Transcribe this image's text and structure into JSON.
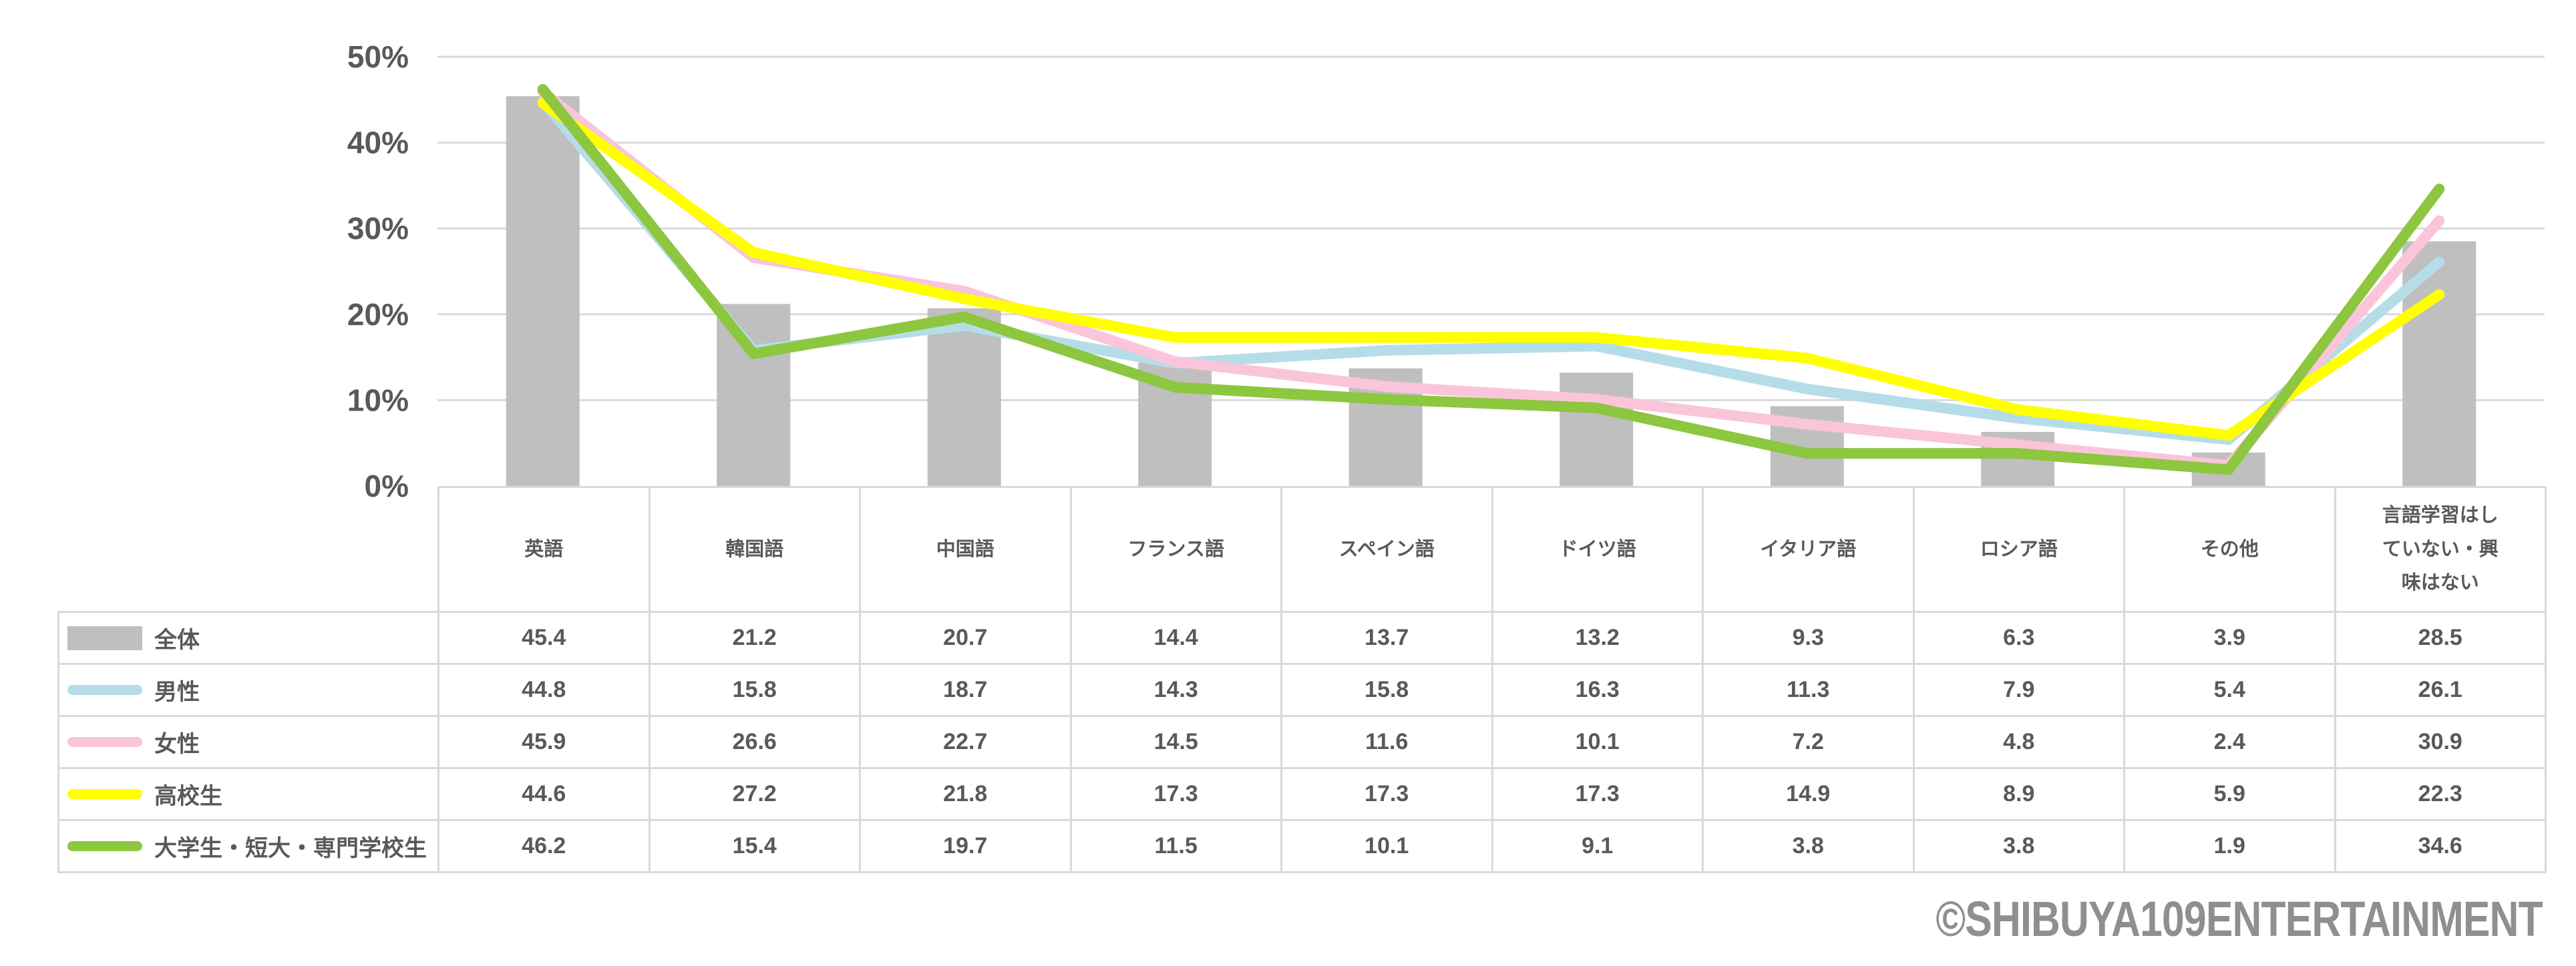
{
  "chart_data": {
    "type": "bar+line",
    "title": "",
    "categories": [
      "英語",
      "韓国語",
      "中国語",
      "フランス語",
      "スペイン語",
      "ドイツ語",
      "イタリア語",
      "ロシア語",
      "その他",
      "言語学習はしていない・興味はない"
    ],
    "series": [
      {
        "name": "全体",
        "type": "bar",
        "color": "#bfbfbf",
        "values": [
          45.4,
          21.2,
          20.7,
          14.4,
          13.7,
          13.2,
          9.3,
          6.3,
          3.9,
          28.5
        ]
      },
      {
        "name": "男性",
        "type": "line",
        "color": "#b5dde8",
        "values": [
          44.8,
          15.8,
          18.7,
          14.3,
          15.8,
          16.3,
          11.3,
          7.9,
          5.4,
          26.1
        ]
      },
      {
        "name": "女性",
        "type": "line",
        "color": "#fac5da",
        "values": [
          45.9,
          26.6,
          22.7,
          14.5,
          11.6,
          10.1,
          7.2,
          4.8,
          2.4,
          30.9
        ]
      },
      {
        "name": "高校生",
        "type": "line",
        "color": "#ffff00",
        "values": [
          44.6,
          27.2,
          21.8,
          17.3,
          17.3,
          17.3,
          14.9,
          8.9,
          5.9,
          22.3
        ]
      },
      {
        "name": "大学生・短大・専門学校生",
        "type": "line",
        "color": "#8dc63f",
        "values": [
          46.2,
          15.4,
          19.7,
          11.5,
          10.1,
          9.1,
          3.8,
          3.8,
          1.9,
          34.6
        ]
      }
    ],
    "y_axis": {
      "min": 0,
      "max": 50,
      "tick_step": 10,
      "tick_labels": [
        "0%",
        "10%",
        "20%",
        "30%",
        "40%",
        "50%"
      ],
      "grid": true
    },
    "legend_position": "table-left-column",
    "gridline_color": "#d9d9d9",
    "text_color": "#595959"
  },
  "footer": {
    "copyright": "©SHIBUYA109ENTERTAINMENT"
  }
}
